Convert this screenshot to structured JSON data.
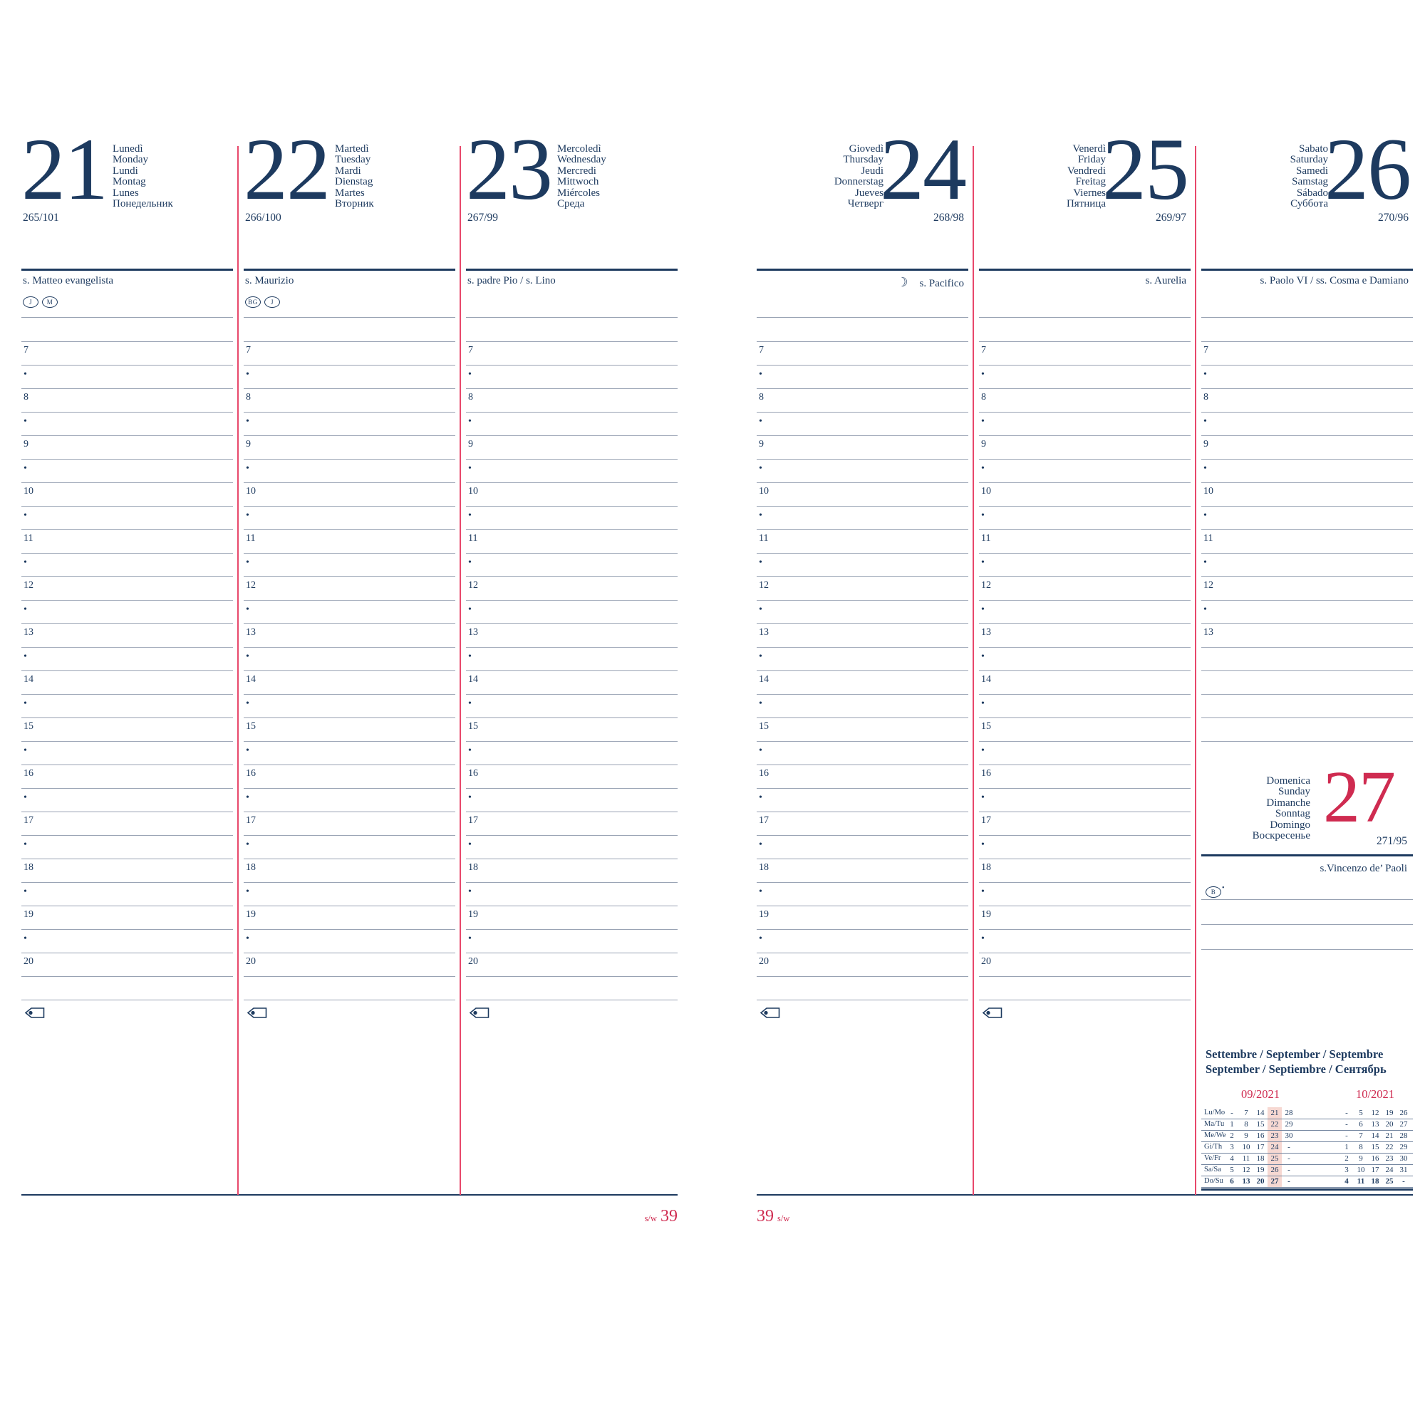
{
  "colors": {
    "navy": "#1d3a5f",
    "red": "#cf2b50",
    "line_red": "#e8486b",
    "grid": "#98a2b3",
    "highlight": "#f6d8d2"
  },
  "week": {
    "label": "s/w",
    "number": "39"
  },
  "hours": {
    "full": [
      "7",
      "•",
      "8",
      "•",
      "9",
      "•",
      "10",
      "•",
      "11",
      "•",
      "12",
      "•",
      "13",
      "•",
      "14",
      "•",
      "15",
      "•",
      "16",
      "•",
      "17",
      "•",
      "18",
      "•",
      "19",
      "•",
      "20"
    ],
    "short": [
      "7",
      "•",
      "8",
      "•",
      "9",
      "•",
      "10",
      "•",
      "11",
      "•",
      "12",
      "•",
      "13"
    ]
  },
  "days": [
    {
      "number": "21",
      "names": [
        "Lunedì",
        "Monday",
        "Lundi",
        "Montag",
        "Lunes",
        "Понедельник"
      ],
      "counter": "265/101",
      "saint": "s. Matteo evangelista",
      "badges": [
        "J",
        "M"
      ],
      "side": "left",
      "grid": "full",
      "arrow": true
    },
    {
      "number": "22",
      "names": [
        "Martedì",
        "Tuesday",
        "Mardi",
        "Dienstag",
        "Martes",
        "Вторник"
      ],
      "counter": "266/100",
      "saint": "s. Maurizio",
      "badges": [
        "BG",
        "J"
      ],
      "side": "left",
      "grid": "full",
      "arrow": true
    },
    {
      "number": "23",
      "names": [
        "Mercoledì",
        "Wednesday",
        "Mercredi",
        "Mittwoch",
        "Miércoles",
        "Среда"
      ],
      "counter": "267/99",
      "saint": "s. padre Pio / s. Lino",
      "badges": [],
      "side": "left",
      "grid": "full",
      "arrow": true
    },
    {
      "number": "24",
      "names": [
        "Giovedì",
        "Thursday",
        "Jeudi",
        "Donnerstag",
        "Jueves",
        "Четверг"
      ],
      "counter": "268/98",
      "saint": "s. Pacifico",
      "moon": "☽",
      "badges": [],
      "side": "right",
      "grid": "full",
      "arrow": true
    },
    {
      "number": "25",
      "names": [
        "Venerdì",
        "Friday",
        "Vendredi",
        "Freitag",
        "Viernes",
        "Пятница"
      ],
      "counter": "269/97",
      "saint": "s. Aurelia",
      "badges": [],
      "side": "right",
      "grid": "full",
      "arrow": true
    },
    {
      "number": "26",
      "names": [
        "Sabato",
        "Saturday",
        "Samedi",
        "Samstag",
        "Sábado",
        "Суббота"
      ],
      "counter": "270/96",
      "saint": "s. Paolo VI / ss. Cosma e Damiano",
      "badges": [],
      "side": "right",
      "grid": "short",
      "arrow": false
    }
  ],
  "sunday": {
    "number": "27",
    "names": [
      "Domenica",
      "Sunday",
      "Dimanche",
      "Sonntag",
      "Domingo",
      "Воскресенье"
    ],
    "counter": "271/95",
    "saint": "s.Vincenzo de’ Paoli",
    "badge": "B",
    "badge_mark": "•"
  },
  "minical": {
    "title1": "Settembre / September / Septembre",
    "title2": "September / Septiembre / Сентябрь",
    "row_labels": [
      "Lu/Mo",
      "Ma/Tu",
      "Me/We",
      "Gi/Th",
      "Ve/Fr",
      "Sa/Sa",
      "Do/Su"
    ],
    "months": [
      {
        "label": "09/2021",
        "rows": [
          [
            "-",
            "7",
            "14",
            "21",
            "28"
          ],
          [
            "1",
            "8",
            "15",
            "22",
            "29"
          ],
          [
            "2",
            "9",
            "16",
            "23",
            "30"
          ],
          [
            "3",
            "10",
            "17",
            "24",
            "-"
          ],
          [
            "4",
            "11",
            "18",
            "25",
            "-"
          ],
          [
            "5",
            "12",
            "19",
            "26",
            "-"
          ],
          [
            "6",
            "13",
            "20",
            "27",
            "-"
          ]
        ]
      },
      {
        "label": "10/2021",
        "rows": [
          [
            "-",
            "5",
            "12",
            "19",
            "26"
          ],
          [
            "-",
            "6",
            "13",
            "20",
            "27"
          ],
          [
            "-",
            "7",
            "14",
            "21",
            "28"
          ],
          [
            "1",
            "8",
            "15",
            "22",
            "29"
          ],
          [
            "2",
            "9",
            "16",
            "23",
            "30"
          ],
          [
            "3",
            "10",
            "17",
            "24",
            "31"
          ],
          [
            "4",
            "11",
            "18",
            "25",
            "-"
          ]
        ]
      }
    ]
  }
}
